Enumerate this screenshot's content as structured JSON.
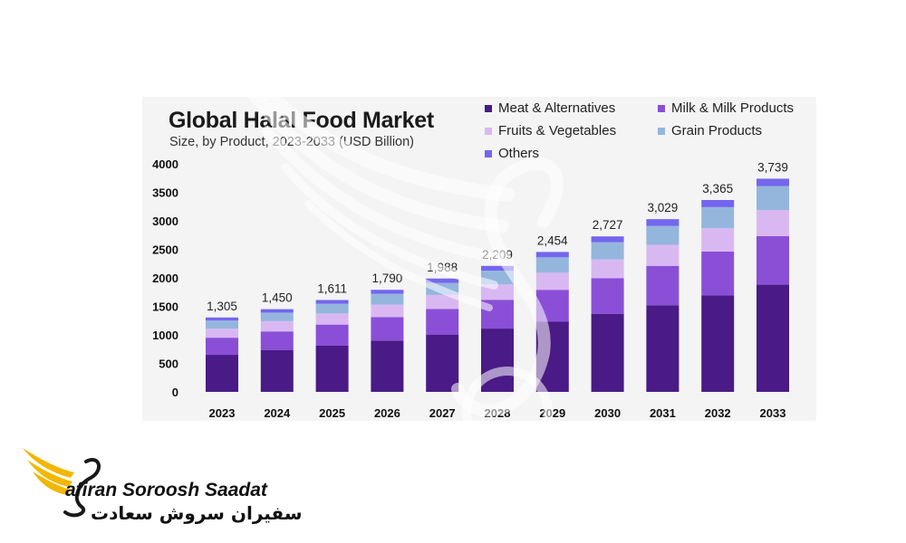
{
  "chart_data": {
    "type": "bar",
    "stacked": true,
    "title": "Global Halal Food Market",
    "subtitle": "Size, by Product, 2023-2033 (USD Billion)",
    "categories": [
      "2023",
      "2024",
      "2025",
      "2026",
      "2027",
      "2028",
      "2029",
      "2030",
      "2031",
      "2032",
      "2033"
    ],
    "totals": [
      "1,305",
      "1,450",
      "1,611",
      "1,790",
      "1,988",
      "2,209",
      "2,454",
      "2,727",
      "3,029",
      "3,365",
      "3,739"
    ],
    "series": [
      {
        "name": "Meat & Alternatives",
        "color": "#4a1a86",
        "values": [
          650,
          730,
          810,
          900,
          1000,
          1110,
          1230,
          1370,
          1520,
          1690,
          1880
        ]
      },
      {
        "name": "Milk & Milk Products",
        "color": "#8a4fd6",
        "values": [
          300,
          330,
          370,
          410,
          455,
          505,
          560,
          625,
          690,
          770,
          850
        ]
      },
      {
        "name": "Fruits & Vegetables",
        "color": "#d9b8f2",
        "values": [
          160,
          180,
          195,
          220,
          245,
          270,
          300,
          330,
          370,
          410,
          460
        ]
      },
      {
        "name": "Grain Products",
        "color": "#94b6dd",
        "values": [
          140,
          150,
          170,
          190,
          210,
          240,
          270,
          300,
          330,
          370,
          420
        ]
      },
      {
        "name": "Others",
        "color": "#7466ee",
        "values": [
          55,
          60,
          66,
          70,
          78,
          84,
          94,
          102,
          119,
          125,
          129
        ]
      }
    ],
    "yticks": [
      0,
      500,
      1000,
      1500,
      2000,
      2500,
      3000,
      3500,
      4000
    ],
    "ylim": [
      0,
      4000
    ],
    "grid": false,
    "legend": "top-right"
  },
  "brand": {
    "name": "afiran Soroosh Saadat",
    "name_fa": "سفیران سروش سعادت"
  },
  "colors": {
    "panel": "#f4f4f4",
    "brand_gold": "#f2b705"
  }
}
